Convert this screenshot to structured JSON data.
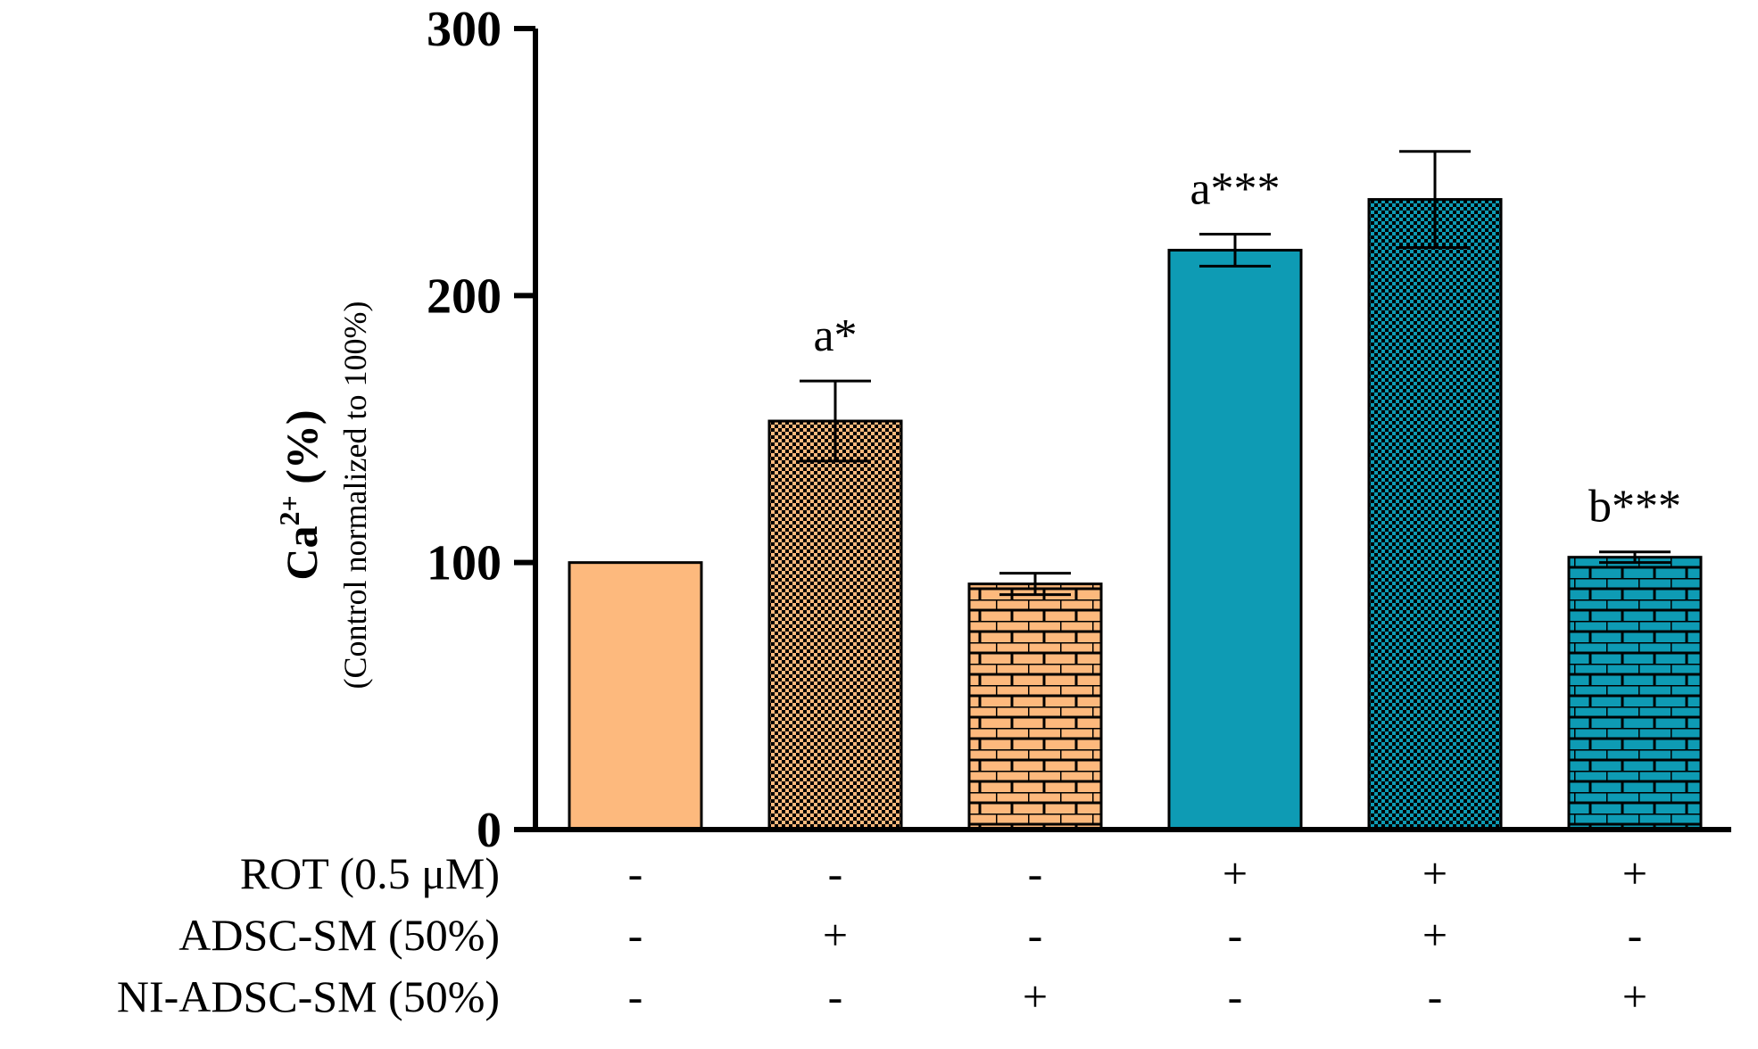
{
  "chart_data": {
    "type": "bar",
    "title": "",
    "xlabel": "",
    "ylabel": {
      "main_prefix": "Ca",
      "main_superscript": "2+",
      "main_suffix": " (%)",
      "sub": "(Control normalized to 100%)"
    },
    "ylim": [
      0,
      300
    ],
    "yticks": [
      "0",
      "100",
      "200",
      "300"
    ],
    "groups": [
      {
        "value": 100,
        "error": 0,
        "annotation": "",
        "fill": "solid",
        "color": "#FDB97D"
      },
      {
        "value": 153,
        "error": 15,
        "annotation": "a*",
        "fill": "checker",
        "color": "#FDB97D"
      },
      {
        "value": 92,
        "error": 4,
        "annotation": "",
        "fill": "brick",
        "color": "#FDB97D"
      },
      {
        "value": 217,
        "error": 6,
        "annotation": "a***",
        "fill": "solid",
        "color": "#0E9BB4"
      },
      {
        "value": 236,
        "error": 18,
        "annotation": "",
        "fill": "checker",
        "color": "#0E9BB4"
      },
      {
        "value": 102,
        "error": 2,
        "annotation": "b***",
        "fill": "brick",
        "color": "#0E9BB4"
      }
    ],
    "conditions": [
      {
        "label": "ROT (0.5 μM)",
        "signs": [
          "-",
          "-",
          "-",
          "+",
          "+",
          "+"
        ]
      },
      {
        "label": "ADSC-SM (50%)",
        "signs": [
          "-",
          "+",
          "-",
          "-",
          "+",
          "-"
        ]
      },
      {
        "label": "NI-ADSC-SM (50%)",
        "signs": [
          "-",
          "-",
          "+",
          "-",
          "-",
          "+"
        ]
      }
    ]
  }
}
